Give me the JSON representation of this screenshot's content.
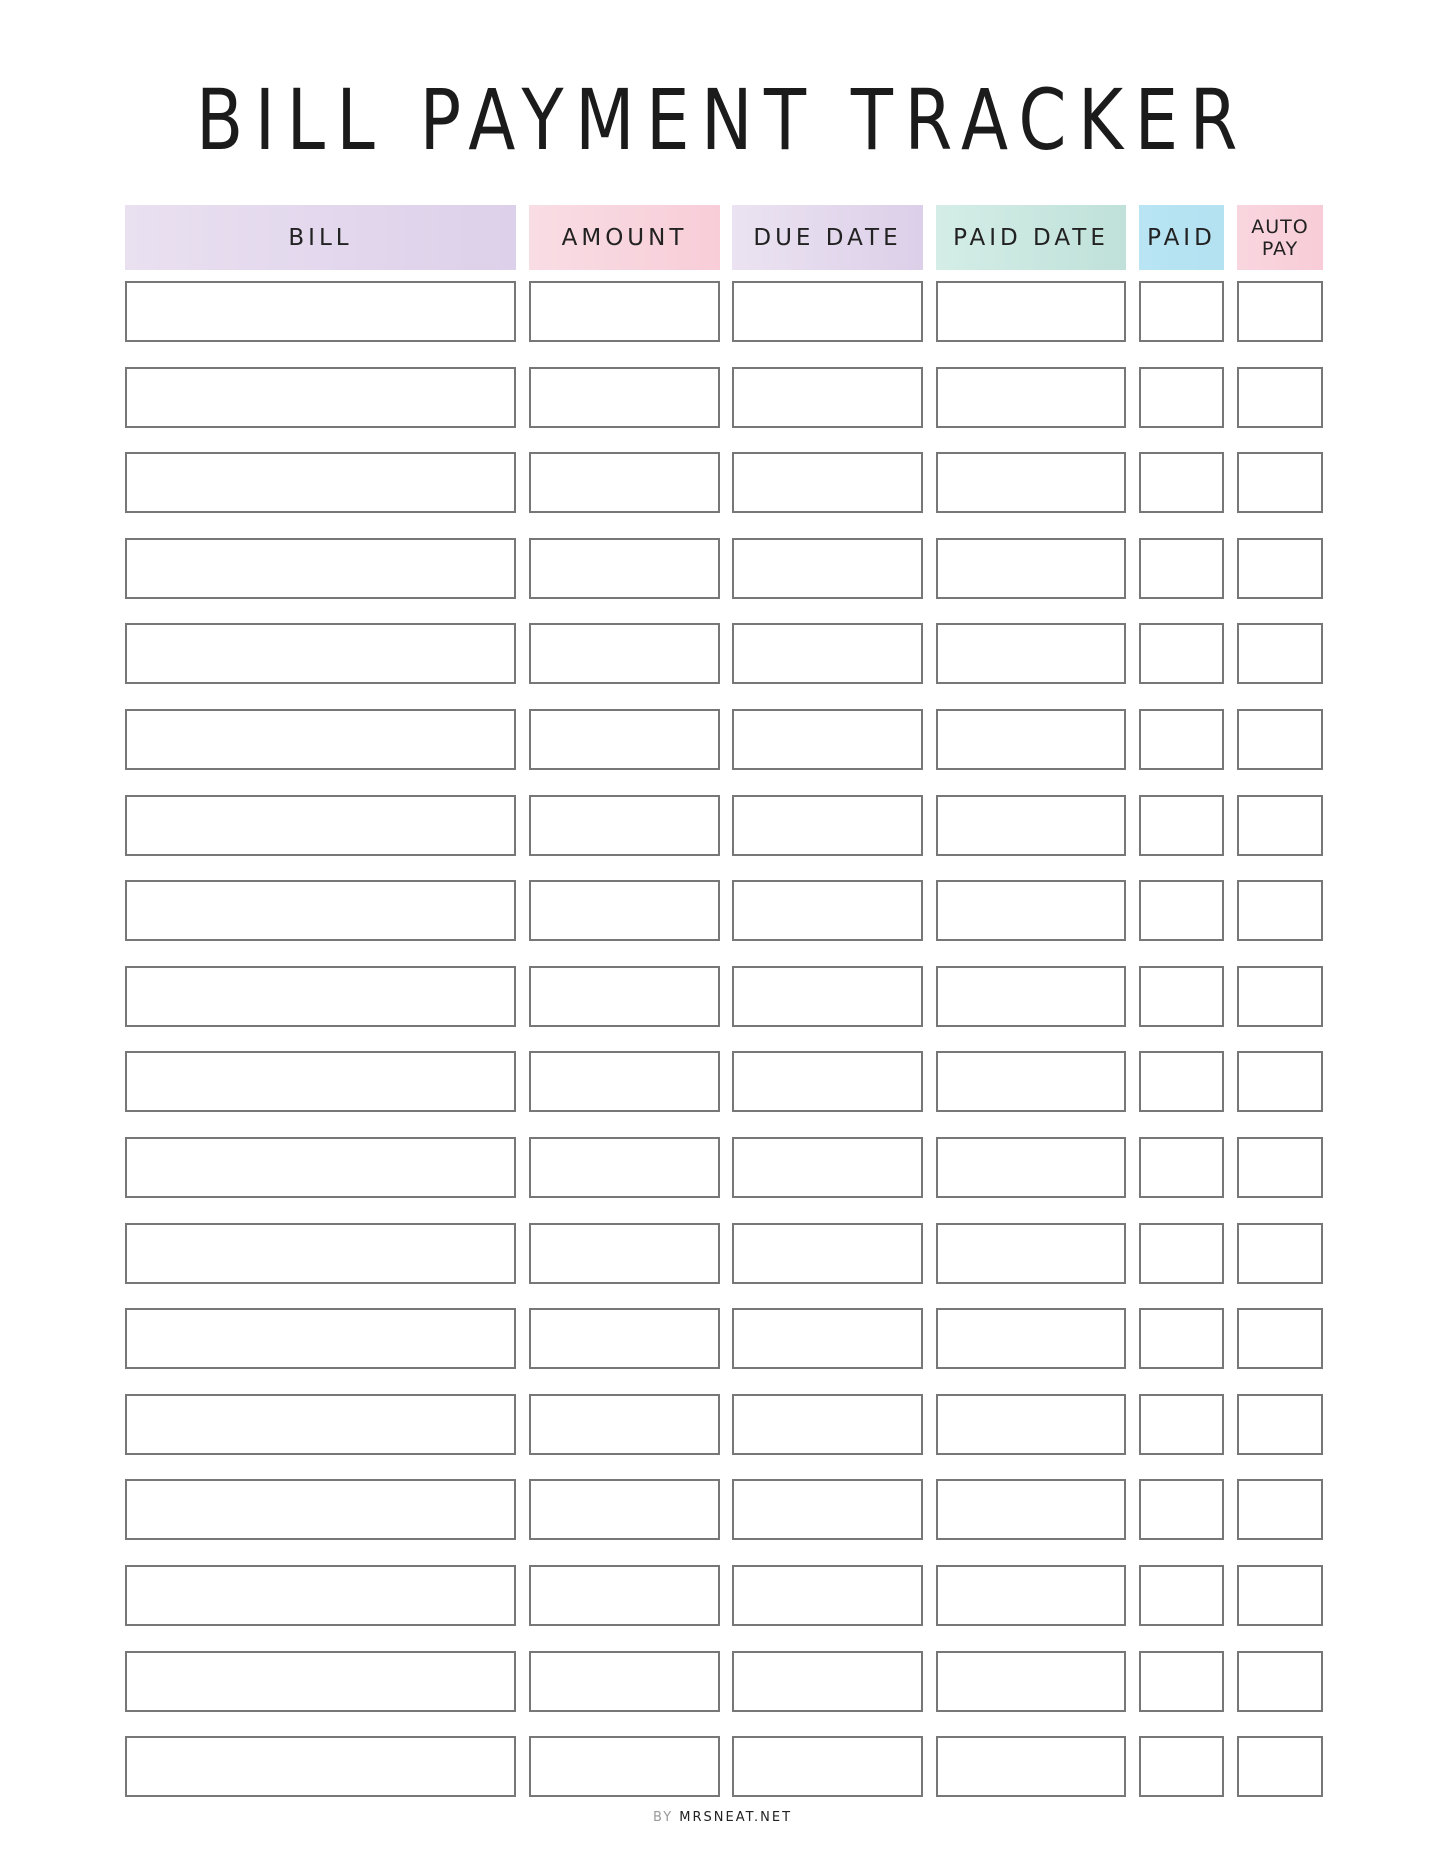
{
  "title": "BILL PAYMENT TRACKER",
  "columns": [
    {
      "label": "BILL",
      "color_from": "#e9e0f0",
      "color_to": "#ddd0ea"
    },
    {
      "label": "AMOUNT",
      "color_from": "#f9dde4",
      "color_to": "#f8cdd8"
    },
    {
      "label": "DUE DATE",
      "color_from": "#ebe3f1",
      "color_to": "#dccfe9"
    },
    {
      "label": "PAID DATE",
      "color_from": "#d4ede7",
      "color_to": "#bfe1d9"
    },
    {
      "label": "PAID",
      "color_from": "#b8e4f3",
      "color_to": "#b4e2f1"
    },
    {
      "label": "AUTO\nPAY",
      "color_from": "#f9d6df",
      "color_to": "#f8ccd7"
    }
  ],
  "row_count": 18,
  "footer": {
    "by": "BY",
    "site": "MRSNEAT.NET"
  }
}
